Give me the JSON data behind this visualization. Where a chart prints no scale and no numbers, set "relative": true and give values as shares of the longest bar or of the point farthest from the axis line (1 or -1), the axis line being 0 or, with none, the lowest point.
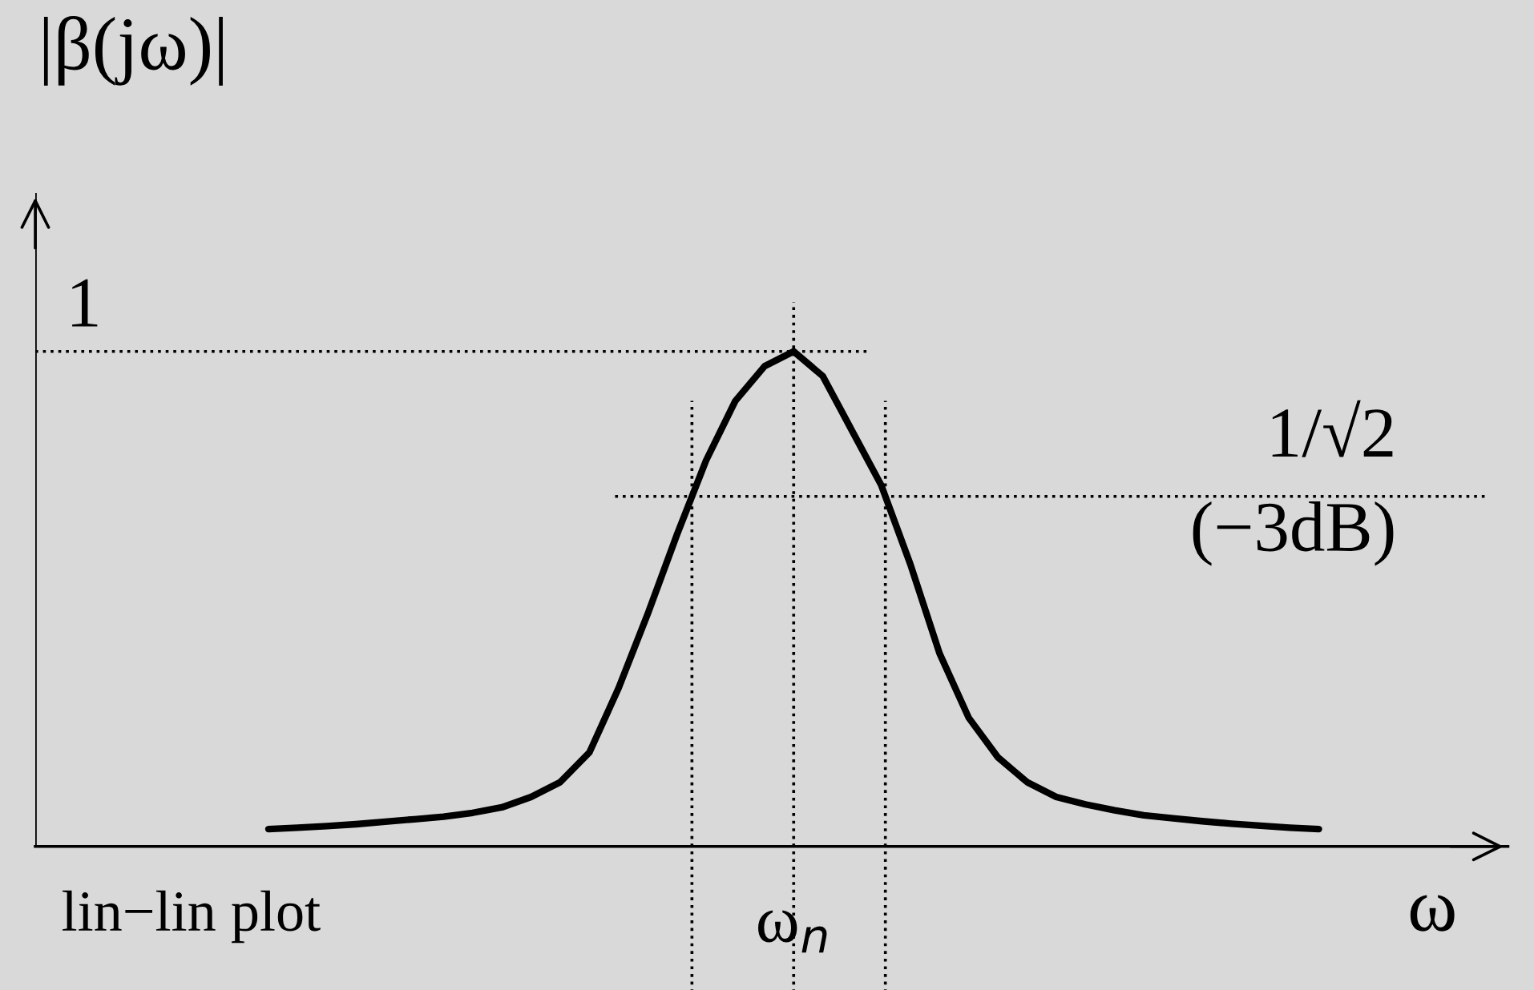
{
  "chart_data": {
    "type": "line",
    "relative": true,
    "ylabel": "|β(jω)|",
    "xlabel": "ω",
    "categories": [
      null,
      null,
      null,
      null,
      null,
      null,
      null,
      null,
      null,
      null,
      null,
      null,
      null,
      null,
      null,
      null,
      null,
      null,
      null,
      null,
      null,
      null,
      null,
      null,
      null,
      null,
      null,
      null,
      null,
      null,
      null,
      null,
      null,
      null,
      null,
      null,
      null
    ],
    "series": [
      {
        "color": "#000000",
        "values": [
          0.035,
          0.038,
          0.041,
          0.045,
          0.05,
          0.055,
          0.06,
          0.068,
          0.079,
          0.1,
          0.13,
          0.19,
          0.32,
          0.47,
          0.63,
          0.78,
          0.9,
          0.97,
          1,
          0.95,
          0.84,
          0.73,
          0.57,
          0.39,
          0.26,
          0.18,
          0.13,
          0.1,
          0.085,
          0.073,
          0.063,
          0.057,
          0.051,
          0.046,
          0.042,
          0.038,
          0.035
        ]
      }
    ],
    "ref_lines": [
      {
        "axis": "y",
        "value": 1,
        "label": "1",
        "line_style": "dotted"
      },
      {
        "axis": "y",
        "value": 0.7071,
        "label": "1/√2\n(−3dB)",
        "line_style": "dotted"
      }
    ],
    "annotations": [
      "lin−lin plot",
      "ω$_{n}$"
    ],
    "legend": false
  }
}
